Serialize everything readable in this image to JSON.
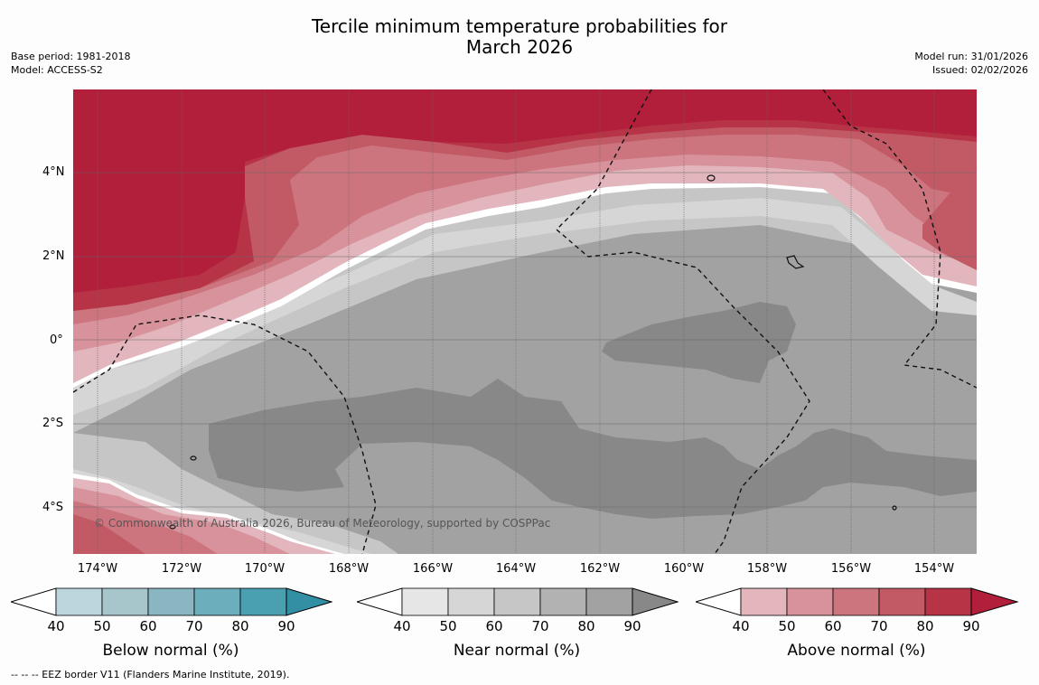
{
  "title": {
    "line1": "Tercile minimum temperature probabilities for",
    "line2": "March 2026"
  },
  "meta_left": {
    "base_period": "Base period: 1981-2018",
    "model": "Model: ACCESS-S2"
  },
  "meta_right": {
    "model_run": "Model run: 31/01/2026",
    "issued": "Issued: 02/02/2026"
  },
  "lat_labels": [
    "4°N",
    "2°N",
    "0°",
    "2°S",
    "4°S"
  ],
  "lon_labels": [
    "174°W",
    "172°W",
    "170°W",
    "168°W",
    "166°W",
    "164°W",
    "162°W",
    "160°W",
    "158°W",
    "156°W",
    "154°W"
  ],
  "copyright": "© Commonwealth of Australia 2026, Bureau of Meteorology, supported by COSPPac",
  "footer": "--  --  -- EEZ border V11 (Flanders Marine Institute, 2019).",
  "colorbars": {
    "ticks": [
      "40",
      "50",
      "60",
      "70",
      "80",
      "90"
    ],
    "below": {
      "label": "Below normal (%)",
      "colors": [
        "#bcd6dd",
        "#a6c6cc",
        "#8ab6c2",
        "#6caebb",
        "#4a9fb0",
        "#3390a4"
      ]
    },
    "near": {
      "label": "Near normal (%)",
      "colors": [
        "#e6e6e6",
        "#d6d6d6",
        "#c6c6c6",
        "#b2b2b2",
        "#a2a2a2",
        "#888888"
      ]
    },
    "above": {
      "label": "Above normal (%)",
      "colors": [
        "#e2b6bc",
        "#d8929b",
        "#cd757e",
        "#c25a65",
        "#b73447",
        "#b11f3a"
      ]
    }
  }
}
